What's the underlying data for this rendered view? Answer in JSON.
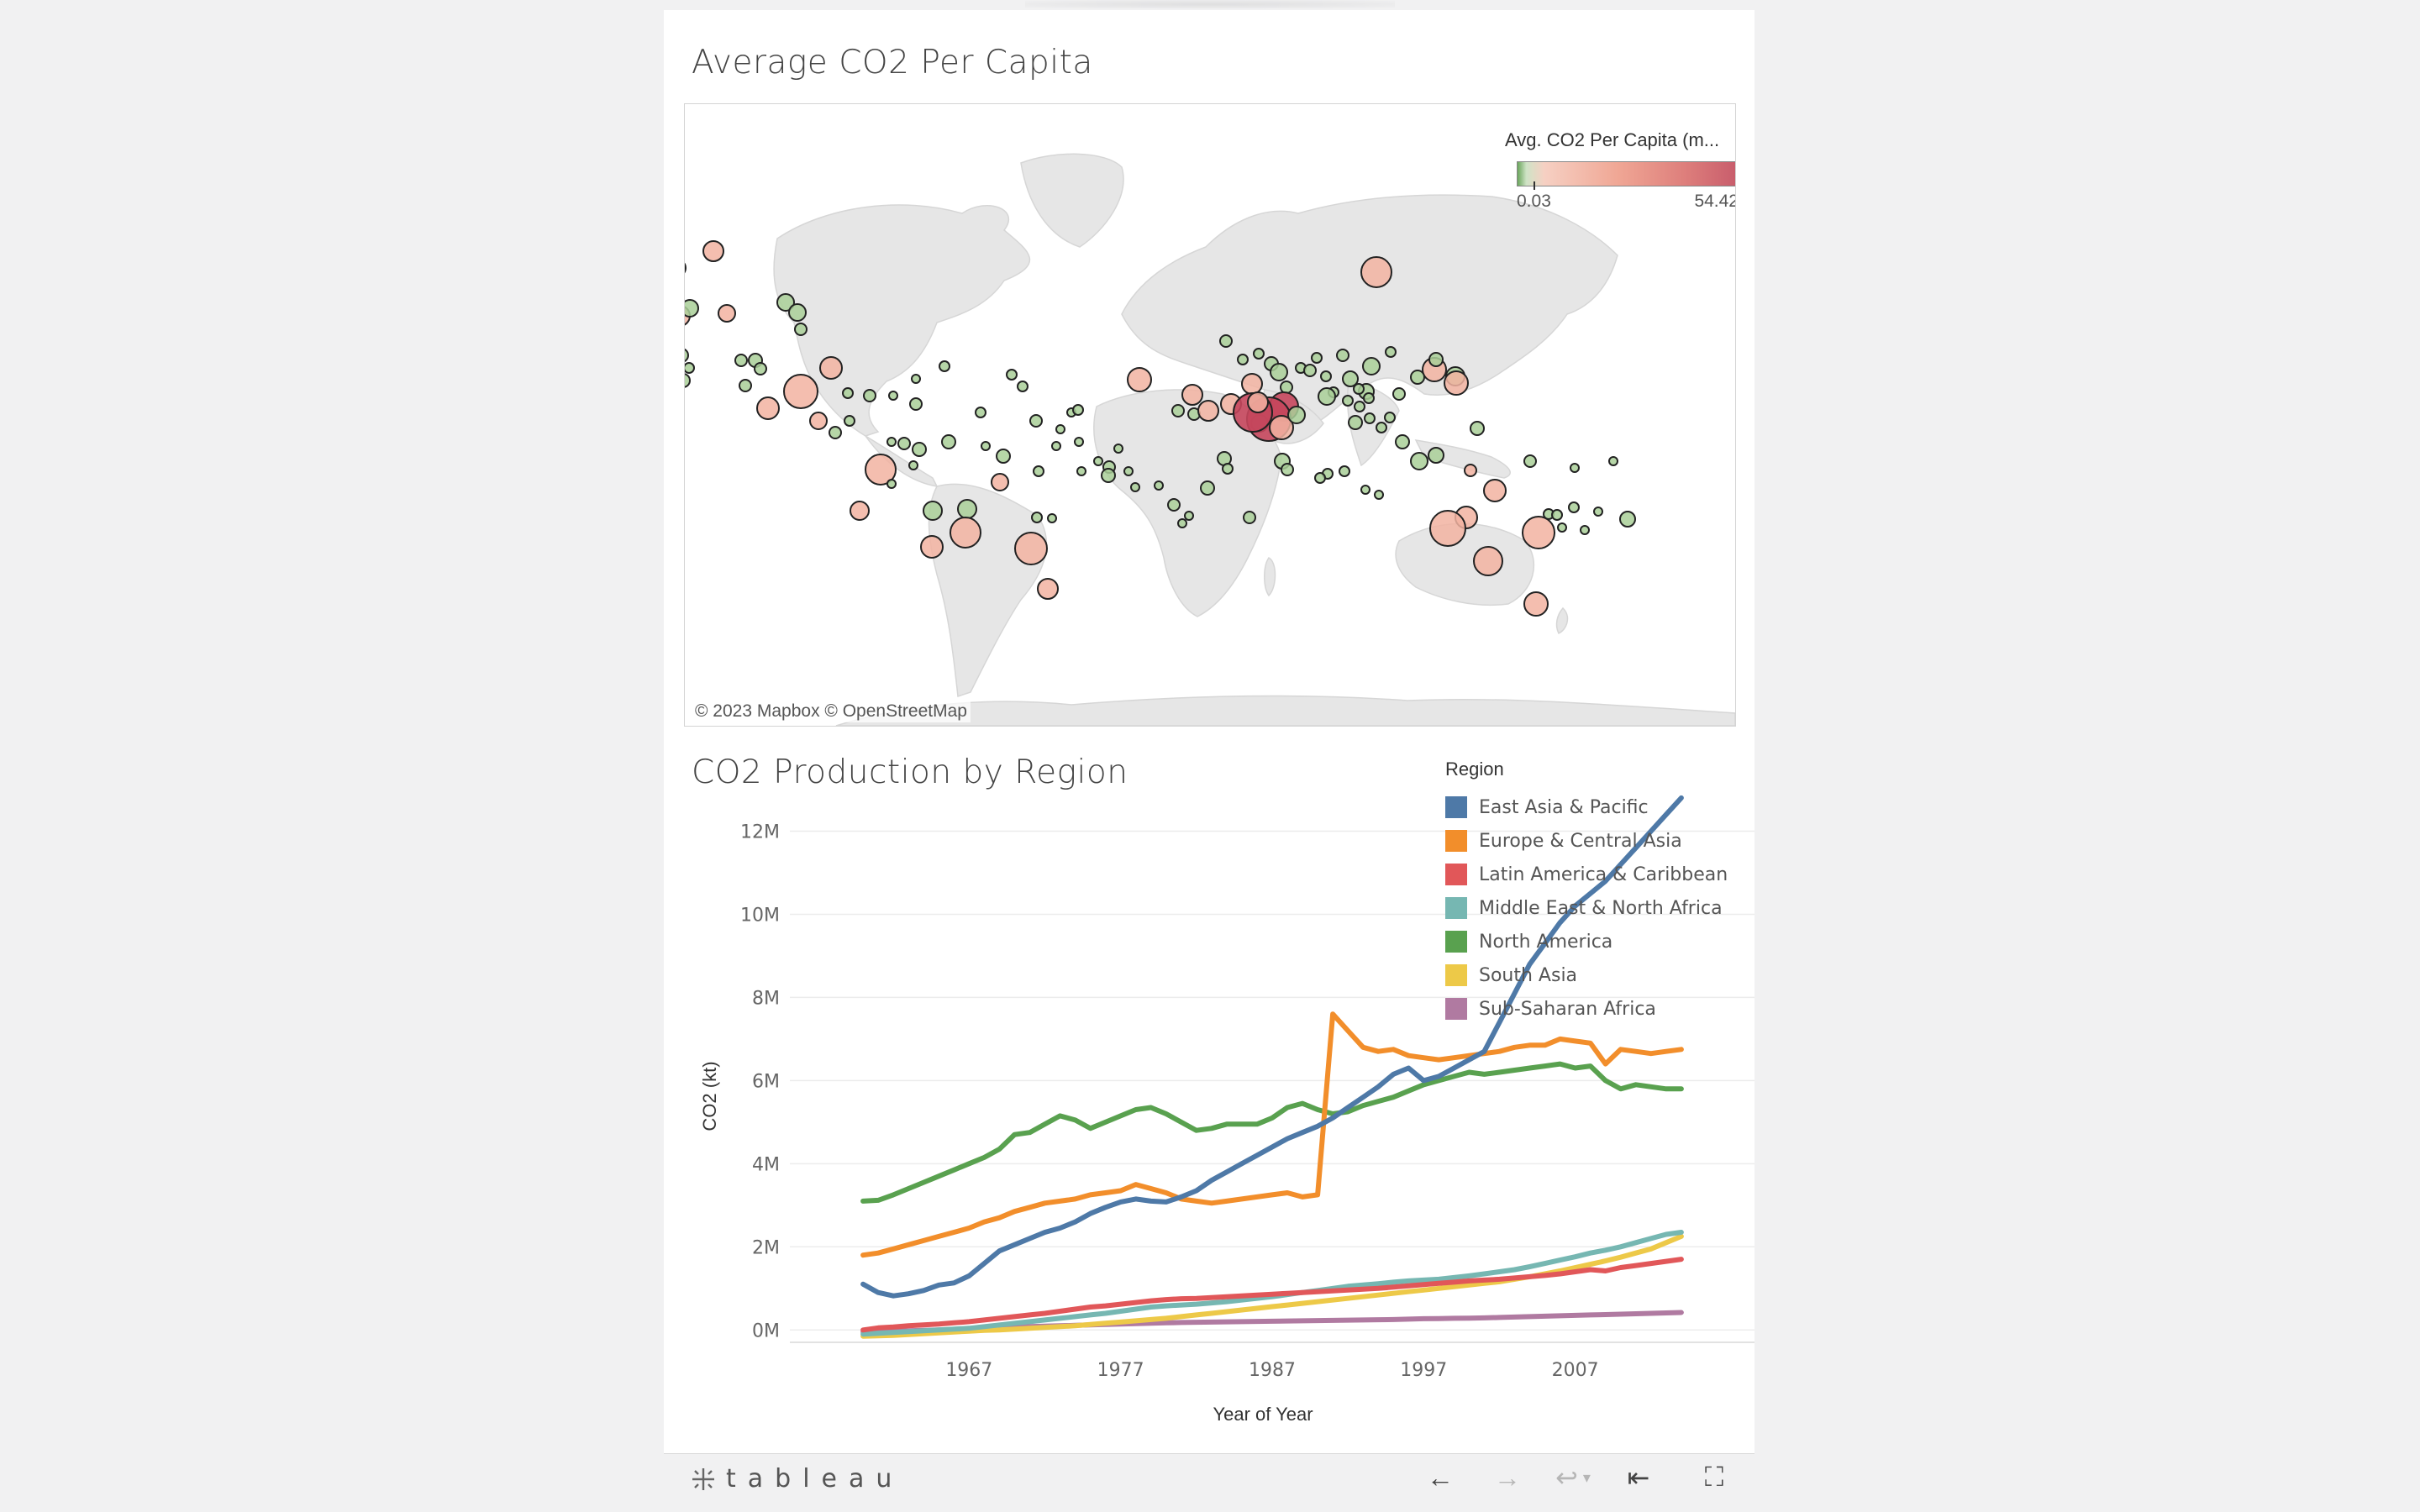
{
  "map": {
    "title": "Average CO2 Per Capita",
    "attribution": "© 2023 Mapbox  © OpenStreetMap",
    "legend": {
      "title": "Avg. CO2 Per Capita (m...",
      "min": "0.03",
      "max": "54.42"
    },
    "colors": {
      "low": "#6aa55c",
      "mid": "#f2b3a1",
      "high": "#c5465c",
      "land": "#e7e7e7"
    }
  },
  "chart_data": {
    "type": "line",
    "title": "CO2 Production by Region",
    "xlabel": "Year of Year",
    "ylabel": "CO2 (kt)",
    "x": [
      1960,
      1961,
      1962,
      1963,
      1964,
      1965,
      1966,
      1967,
      1968,
      1969,
      1970,
      1971,
      1972,
      1973,
      1974,
      1975,
      1976,
      1977,
      1978,
      1979,
      1980,
      1981,
      1982,
      1983,
      1984,
      1985,
      1986,
      1987,
      1988,
      1989,
      1990,
      1991,
      1992,
      1993,
      1994,
      1995,
      1996,
      1997,
      1998,
      1999,
      2000,
      2001,
      2002,
      2003,
      2004,
      2005,
      2006,
      2007,
      2008,
      2009,
      2010,
      2011,
      2012,
      2013,
      2014
    ],
    "xticks": [
      1967,
      1977,
      1987,
      1997,
      2007
    ],
    "ylim": [
      -500000,
      13000000
    ],
    "yticks": [
      0,
      2000000,
      4000000,
      6000000,
      8000000,
      10000000,
      12000000
    ],
    "ytick_labels": [
      "0M",
      "2M",
      "4M",
      "6M",
      "8M",
      "10M",
      "12M"
    ],
    "legend_title": "Region",
    "series": [
      {
        "name": "East Asia & Pacific",
        "color": "#4e79a7",
        "values": [
          1100000,
          900000,
          820000,
          870000,
          950000,
          1080000,
          1130000,
          1300000,
          1600000,
          1900000,
          2050000,
          2200000,
          2350000,
          2450000,
          2600000,
          2800000,
          2950000,
          3080000,
          3150000,
          3100000,
          3080000,
          3200000,
          3350000,
          3600000,
          3800000,
          4000000,
          4200000,
          4400000,
          4600000,
          4750000,
          4900000,
          5100000,
          5350000,
          5600000,
          5850000,
          6150000,
          6300000,
          6000000,
          6100000,
          6300000,
          6500000,
          6700000,
          7400000,
          8100000,
          8800000,
          9300000,
          9800000,
          10200000,
          10500000,
          10800000,
          11200000,
          11600000,
          12000000,
          12400000,
          12800000
        ]
      },
      {
        "name": "Europe & Central Asia",
        "color": "#f28e2b",
        "values": [
          1800000,
          1850000,
          1950000,
          2050000,
          2150000,
          2250000,
          2350000,
          2450000,
          2600000,
          2700000,
          2850000,
          2950000,
          3050000,
          3100000,
          3150000,
          3250000,
          3300000,
          3350000,
          3500000,
          3400000,
          3300000,
          3150000,
          3100000,
          3050000,
          3100000,
          3150000,
          3200000,
          3250000,
          3300000,
          3200000,
          3250000,
          7600000,
          7200000,
          6800000,
          6700000,
          6750000,
          6600000,
          6550000,
          6500000,
          6550000,
          6600000,
          6650000,
          6700000,
          6800000,
          6850000,
          6850000,
          7000000,
          6950000,
          6900000,
          6400000,
          6750000,
          6700000,
          6650000,
          6700000,
          6750000
        ]
      },
      {
        "name": "Latin America & Caribbean",
        "color": "#e15759",
        "values": [
          0,
          50000,
          70000,
          100000,
          120000,
          140000,
          170000,
          200000,
          240000,
          280000,
          320000,
          360000,
          400000,
          450000,
          500000,
          550000,
          580000,
          620000,
          660000,
          700000,
          730000,
          750000,
          760000,
          780000,
          800000,
          820000,
          840000,
          860000,
          880000,
          900000,
          920000,
          940000,
          960000,
          980000,
          1000000,
          1030000,
          1060000,
          1090000,
          1120000,
          1150000,
          1180000,
          1200000,
          1220000,
          1250000,
          1280000,
          1310000,
          1350000,
          1400000,
          1450000,
          1420000,
          1500000,
          1550000,
          1600000,
          1650000,
          1700000
        ]
      },
      {
        "name": "Middle East & North Africa",
        "color": "#76b7b2",
        "values": [
          -100000,
          -80000,
          -60000,
          -40000,
          -20000,
          0,
          20000,
          40000,
          80000,
          120000,
          160000,
          200000,
          240000,
          280000,
          320000,
          360000,
          400000,
          450000,
          500000,
          550000,
          580000,
          600000,
          620000,
          650000,
          680000,
          720000,
          760000,
          800000,
          850000,
          900000,
          950000,
          1000000,
          1050000,
          1080000,
          1110000,
          1150000,
          1180000,
          1200000,
          1220000,
          1260000,
          1300000,
          1350000,
          1400000,
          1450000,
          1520000,
          1600000,
          1680000,
          1760000,
          1850000,
          1920000,
          2000000,
          2100000,
          2200000,
          2300000,
          2350000
        ]
      },
      {
        "name": "North America",
        "color": "#59a14f",
        "values": [
          3100000,
          3120000,
          3250000,
          3400000,
          3550000,
          3700000,
          3850000,
          4000000,
          4150000,
          4350000,
          4700000,
          4750000,
          4950000,
          5150000,
          5050000,
          4850000,
          5000000,
          5150000,
          5300000,
          5350000,
          5200000,
          5000000,
          4800000,
          4850000,
          4950000,
          4950000,
          4950000,
          5100000,
          5350000,
          5450000,
          5300000,
          5200000,
          5250000,
          5400000,
          5500000,
          5600000,
          5750000,
          5900000,
          6000000,
          6100000,
          6200000,
          6150000,
          6200000,
          6250000,
          6300000,
          6350000,
          6400000,
          6300000,
          6350000,
          6000000,
          5800000,
          5900000,
          5850000,
          5800000,
          5800000
        ]
      },
      {
        "name": "South Asia",
        "color": "#edc948",
        "values": [
          -150000,
          -140000,
          -130000,
          -110000,
          -90000,
          -70000,
          -50000,
          -30000,
          -10000,
          0,
          20000,
          40000,
          60000,
          80000,
          100000,
          130000,
          160000,
          190000,
          220000,
          250000,
          280000,
          320000,
          360000,
          400000,
          440000,
          480000,
          520000,
          560000,
          600000,
          640000,
          680000,
          720000,
          760000,
          800000,
          840000,
          880000,
          920000,
          960000,
          1000000,
          1040000,
          1080000,
          1120000,
          1160000,
          1220000,
          1280000,
          1350000,
          1420000,
          1500000,
          1580000,
          1660000,
          1750000,
          1850000,
          1950000,
          2100000,
          2250000
        ]
      },
      {
        "name": "Sub-Saharan Africa",
        "color": "#b07aa1",
        "values": [
          -50000,
          -40000,
          -30000,
          -20000,
          -10000,
          0,
          10000,
          20000,
          30000,
          40000,
          60000,
          80000,
          90000,
          100000,
          110000,
          120000,
          130000,
          140000,
          150000,
          160000,
          170000,
          180000,
          185000,
          190000,
          195000,
          200000,
          205000,
          210000,
          215000,
          220000,
          225000,
          230000,
          235000,
          240000,
          245000,
          250000,
          260000,
          270000,
          275000,
          280000,
          285000,
          290000,
          300000,
          310000,
          320000,
          330000,
          340000,
          350000,
          360000,
          370000,
          380000,
          390000,
          400000,
          410000,
          420000
        ]
      }
    ]
  },
  "toolbar": {
    "logo_text": "tableau",
    "undo": "←",
    "redo": "→",
    "revert": "↩",
    "reset": "⇤",
    "fullscreen": "⛶"
  }
}
